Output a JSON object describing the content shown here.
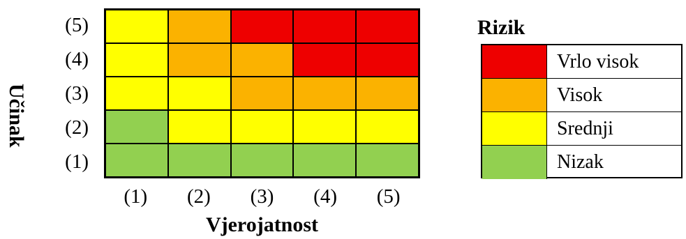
{
  "chart_data": {
    "type": "heatmap",
    "xlabel": "Vjerojatnost",
    "ylabel": "Učinak",
    "x_ticks": [
      "(1)",
      "(2)",
      "(3)",
      "(4)",
      "(5)"
    ],
    "y_ticks": [
      "(5)",
      "(4)",
      "(3)",
      "(2)",
      "(1)"
    ],
    "colors": {
      "red": "#ee0000",
      "orange": "#fbb200",
      "yellow": "#ffff00",
      "green": "#92d050"
    },
    "matrix_rows_top_to_bottom": [
      [
        "Srednji",
        "Visok",
        "Vrlo visok",
        "Vrlo visok",
        "Vrlo visok"
      ],
      [
        "Srednji",
        "Visok",
        "Visok",
        "Vrlo visok",
        "Vrlo visok"
      ],
      [
        "Srednji",
        "Srednji",
        "Visok",
        "Visok",
        "Visok"
      ],
      [
        "Nizak",
        "Srednji",
        "Srednji",
        "Srednji",
        "Srednji"
      ],
      [
        "Nizak",
        "Nizak",
        "Nizak",
        "Nizak",
        "Nizak"
      ]
    ],
    "legend": {
      "title": "Rizik",
      "items": [
        {
          "label": "Vrlo visok",
          "color": "#ee0000"
        },
        {
          "label": "Visok",
          "color": "#fbb200"
        },
        {
          "label": "Srednji",
          "color": "#ffff00"
        },
        {
          "label": "Nizak",
          "color": "#92d050"
        }
      ]
    }
  }
}
